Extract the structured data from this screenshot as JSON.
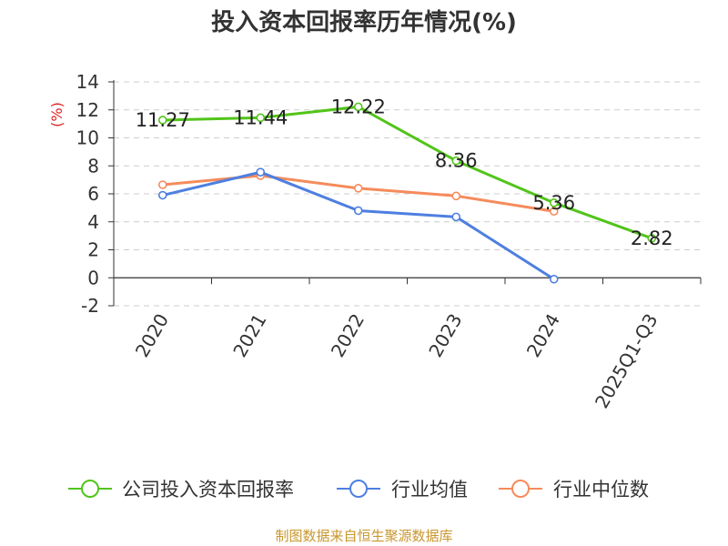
{
  "chart_data": {
    "type": "line",
    "title": "投入资本回报率历年情况(%)",
    "ylabel": "(%)",
    "xlabel": "",
    "categories": [
      "2020",
      "2021",
      "2022",
      "2023",
      "2024",
      "2025Q1-Q3"
    ],
    "ylim": [
      -2,
      14
    ],
    "yticks": [
      -2,
      0,
      2,
      4,
      6,
      8,
      10,
      12,
      14
    ],
    "grid": true,
    "legend_position": "bottom",
    "series": [
      {
        "name": "公司投入资本回报率",
        "color": "#52c41a",
        "values": [
          11.27,
          11.44,
          12.22,
          8.36,
          5.36,
          2.82
        ],
        "labels": [
          "11.27",
          "11.44",
          "12.22",
          "8.36",
          "5.36",
          "2.82"
        ]
      },
      {
        "name": "行业均值",
        "color": "#4e7fe0",
        "values": [
          5.9,
          7.55,
          4.8,
          4.35,
          -0.1,
          null
        ]
      },
      {
        "name": "行业中位数",
        "color": "#f58b5b",
        "values": [
          6.65,
          7.3,
          6.4,
          5.85,
          4.75,
          null
        ]
      }
    ],
    "source": "制图数据来自恒生聚源数据库"
  }
}
